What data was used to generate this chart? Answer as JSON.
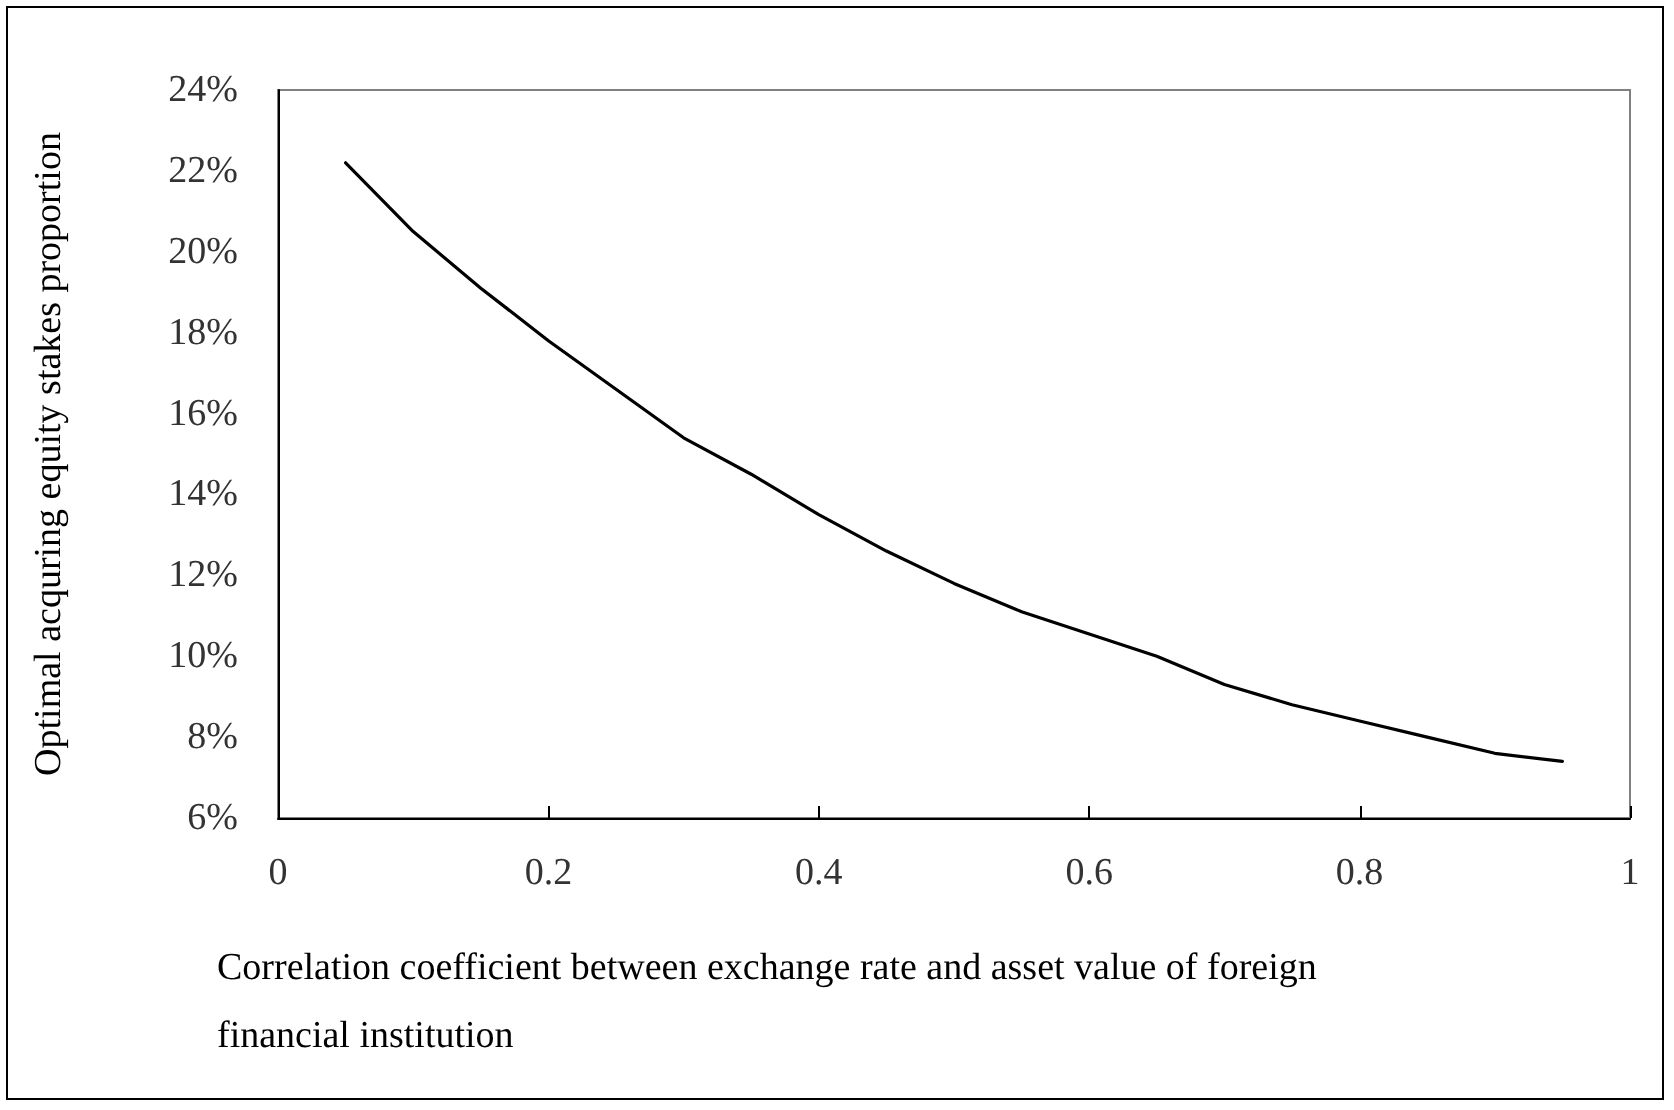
{
  "chart_data": {
    "type": "line",
    "xlabel": "Correlation coefficient between exchange rate and asset value of foreign financial institution",
    "ylabel": "Optimal acquring equity stakes proportion",
    "x": [
      0.05,
      0.1,
      0.15,
      0.2,
      0.25,
      0.3,
      0.35,
      0.4,
      0.45,
      0.5,
      0.55,
      0.6,
      0.65,
      0.7,
      0.75,
      0.8,
      0.85,
      0.9,
      0.95
    ],
    "series": [
      {
        "color": "#000000",
        "values": [
          22.2,
          20.5,
          19.1,
          17.8,
          16.6,
          15.4,
          14.5,
          13.5,
          12.6,
          11.8,
          11.1,
          10.55,
          10.0,
          9.3,
          8.8,
          8.4,
          8.0,
          7.6,
          7.4
        ]
      }
    ],
    "xlim": [
      0,
      1
    ],
    "xticks": [
      0,
      0.2,
      0.4,
      0.6,
      0.8,
      1
    ],
    "ylim": [
      6,
      24
    ],
    "yticks": [
      {
        "value": 6,
        "label": "6%"
      },
      {
        "value": 8,
        "label": "8%"
      },
      {
        "value": 10,
        "label": "10%"
      },
      {
        "value": 12,
        "label": "12%"
      },
      {
        "value": 14,
        "label": "14%"
      },
      {
        "value": 16,
        "label": "16%"
      },
      {
        "value": 18,
        "label": "18%"
      },
      {
        "value": 20,
        "label": "20%"
      },
      {
        "value": 22,
        "label": "22%"
      },
      {
        "value": 24,
        "label": "24%"
      }
    ],
    "grid": false,
    "marker": "none",
    "line_style": "solid"
  }
}
